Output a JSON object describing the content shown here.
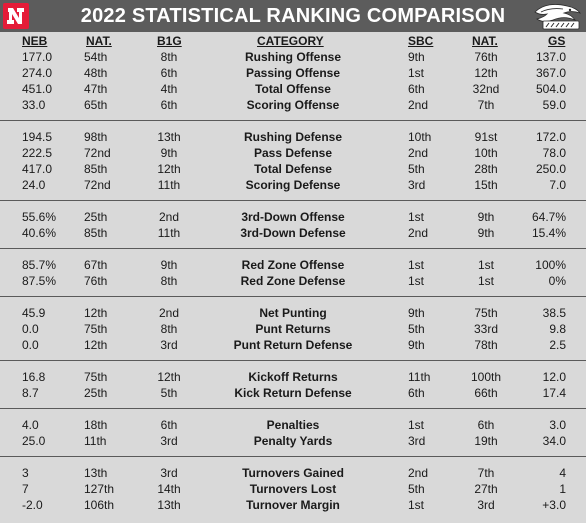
{
  "title": "2022 STATISTICAL RANKING COMPARISON",
  "headers": {
    "neb": "NEB",
    "nat": "NAT.",
    "b1g": "B1G",
    "category": "CATEGORY",
    "sbc": "SBC",
    "nat2": "NAT.",
    "gs": "GS"
  },
  "colors": {
    "banner": "#5c5c5c",
    "background": "#d9d9d9",
    "nebraska_red": "#e41c38",
    "separator": "#5a5a5a"
  },
  "groups": [
    {
      "rows": [
        {
          "neb": "177.0",
          "nat": "54th",
          "b1g": "8th",
          "category": "Rushing Offense",
          "sbc": "9th",
          "nat2": "76th",
          "gs": "137.0"
        },
        {
          "neb": "274.0",
          "nat": "48th",
          "b1g": "6th",
          "category": "Passing Offense",
          "sbc": "1st",
          "nat2": "12th",
          "gs": "367.0"
        },
        {
          "neb": "451.0",
          "nat": "47th",
          "b1g": "4th",
          "category": "Total Offense",
          "sbc": "6th",
          "nat2": "32nd",
          "gs": "504.0"
        },
        {
          "neb": "33.0",
          "nat": "65th",
          "b1g": "6th",
          "category": "Scoring Offense",
          "sbc": "2nd",
          "nat2": "7th",
          "gs": "59.0"
        }
      ]
    },
    {
      "rows": [
        {
          "neb": "194.5",
          "nat": "98th",
          "b1g": "13th",
          "category": "Rushing Defense",
          "sbc": "10th",
          "nat2": "91st",
          "gs": "172.0"
        },
        {
          "neb": "222.5",
          "nat": "72nd",
          "b1g": "9th",
          "category": "Pass Defense",
          "sbc": "2nd",
          "nat2": "10th",
          "gs": "78.0"
        },
        {
          "neb": "417.0",
          "nat": "85th",
          "b1g": "12th",
          "category": "Total Defense",
          "sbc": "5th",
          "nat2": "28th",
          "gs": "250.0"
        },
        {
          "neb": "24.0",
          "nat": "72nd",
          "b1g": "11th",
          "category": "Scoring Defense",
          "sbc": "3rd",
          "nat2": "15th",
          "gs": "7.0"
        }
      ]
    },
    {
      "rows": [
        {
          "neb": "55.6%",
          "nat": "25th",
          "b1g": "2nd",
          "category": "3rd-Down Offense",
          "sbc": "1st",
          "nat2": "9th",
          "gs": "64.7%"
        },
        {
          "neb": "40.6%",
          "nat": "85th",
          "b1g": "11th",
          "category": "3rd-Down Defense",
          "sbc": "2nd",
          "nat2": "9th",
          "gs": "15.4%"
        }
      ]
    },
    {
      "rows": [
        {
          "neb": "85.7%",
          "nat": "67th",
          "b1g": "9th",
          "category": "Red Zone Offense",
          "sbc": "1st",
          "nat2": "1st",
          "gs": "100%"
        },
        {
          "neb": "87.5%",
          "nat": "76th",
          "b1g": "8th",
          "category": "Red Zone Defense",
          "sbc": "1st",
          "nat2": "1st",
          "gs": "0%"
        }
      ]
    },
    {
      "rows": [
        {
          "neb": "45.9",
          "nat": "12th",
          "b1g": "2nd",
          "category": "Net Punting",
          "sbc": "9th",
          "nat2": "75th",
          "gs": "38.5"
        },
        {
          "neb": "0.0",
          "nat": "75th",
          "b1g": "8th",
          "category": "Punt Returns",
          "sbc": "5th",
          "nat2": "33rd",
          "gs": "9.8"
        },
        {
          "neb": "0.0",
          "nat": "12th",
          "b1g": "3rd",
          "category": "Punt Return Defense",
          "sbc": "9th",
          "nat2": "78th",
          "gs": "2.5"
        }
      ]
    },
    {
      "rows": [
        {
          "neb": "16.8",
          "nat": "75th",
          "b1g": "12th",
          "category": "Kickoff Returns",
          "sbc": "11th",
          "nat2": "100th",
          "gs": "12.0"
        },
        {
          "neb": "8.7",
          "nat": "25th",
          "b1g": "5th",
          "category": "Kick Return Defense",
          "sbc": "6th",
          "nat2": "66th",
          "gs": "17.4"
        }
      ]
    },
    {
      "rows": [
        {
          "neb": "4.0",
          "nat": "18th",
          "b1g": "6th",
          "category": "Penalties",
          "sbc": "1st",
          "nat2": "6th",
          "gs": "3.0"
        },
        {
          "neb": "25.0",
          "nat": "11th",
          "b1g": "3rd",
          "category": "Penalty Yards",
          "sbc": "3rd",
          "nat2": "19th",
          "gs": "34.0"
        }
      ]
    },
    {
      "rows": [
        {
          "neb": "3",
          "nat": "13th",
          "b1g": "3rd",
          "category": "Turnovers Gained",
          "sbc": "2nd",
          "nat2": "7th",
          "gs": "4"
        },
        {
          "neb": "7",
          "nat": "127th",
          "b1g": "14th",
          "category": "Turnovers Lost",
          "sbc": "5th",
          "nat2": "27th",
          "gs": "1"
        },
        {
          "neb": "-2.0",
          "nat": "106th",
          "b1g": "13th",
          "category": "Turnover Margin",
          "sbc": "1st",
          "nat2": "3rd",
          "gs": "+3.0"
        }
      ]
    }
  ]
}
